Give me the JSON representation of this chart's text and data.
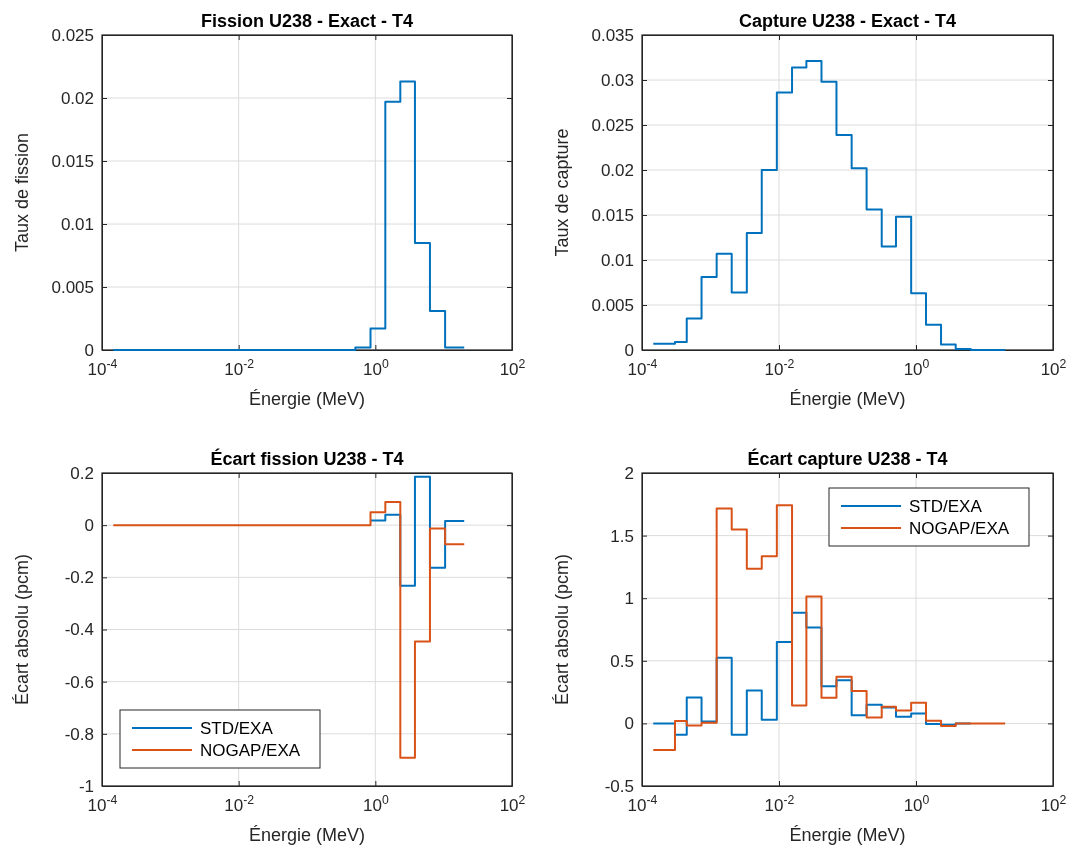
{
  "chart_data": [
    {
      "type": "step",
      "title": "Fission U238 - Exact - T4",
      "xlabel": "Énergie (MeV)",
      "ylabel": "Taux de fission",
      "log": "x",
      "grid": true,
      "x": [
        0.000146,
        0.000303,
        0.00045,
        0.00074,
        0.00123,
        0.00204,
        0.00339,
        0.0056,
        0.0093,
        0.0155,
        0.0251,
        0.0417,
        0.069,
        0.115,
        0.19,
        0.316,
        0.51,
        0.85,
        1.4,
        2.32,
        3.8,
        6.3,
        10.5,
        20
      ],
      "xlim": [
        0.0001,
        100
      ],
      "xticks": [
        {
          "value": 0.0001,
          "label": "10$^{-4}$"
        },
        {
          "value": 0.01,
          "label": "10$^{-2}$"
        },
        {
          "value": 1,
          "label": "10$^{0}$"
        },
        {
          "value": 100,
          "label": "10$^{2}$"
        }
      ],
      "ylim": [
        0,
        0.025
      ],
      "yticks": [
        0,
        0.005,
        0.01,
        0.015,
        0.02,
        0.025
      ],
      "series": [
        {
          "color": "#0072bd",
          "values": [
            0,
            0,
            0,
            0,
            0,
            0,
            0,
            0,
            0,
            0,
            0,
            0,
            0,
            0,
            0,
            0,
            0.0002,
            0.0017,
            0.0197,
            0.0213,
            0.0085,
            0.0031,
            0.0002,
            0.0002
          ]
        }
      ]
    },
    {
      "type": "step",
      "title": "Capture U238 - Exact - T4",
      "xlabel": "Énergie (MeV)",
      "ylabel": "Taux de capture",
      "log": "x",
      "grid": true,
      "x": [
        0.000146,
        0.000303,
        0.00045,
        0.00074,
        0.00123,
        0.00204,
        0.00339,
        0.0056,
        0.0093,
        0.0155,
        0.0251,
        0.0417,
        0.069,
        0.115,
        0.19,
        0.316,
        0.51,
        0.85,
        1.4,
        2.32,
        3.8,
        6.3,
        10.5,
        20
      ],
      "xlim": [
        0.0001,
        100
      ],
      "xticks": [
        {
          "value": 0.0001,
          "label": "10$^{-4}$"
        },
        {
          "value": 0.01,
          "label": "10$^{-2}$"
        },
        {
          "value": 1,
          "label": "10$^{0}$"
        },
        {
          "value": 100,
          "label": "10$^{2}$"
        }
      ],
      "ylim": [
        0,
        0.035
      ],
      "yticks": [
        0,
        0.005,
        0.01,
        0.015,
        0.02,
        0.025,
        0.03,
        0.035
      ],
      "series": [
        {
          "color": "#0072bd",
          "values": [
            0.0007,
            0.0009,
            0.0035,
            0.0081,
            0.0107,
            0.0064,
            0.013,
            0.02,
            0.0286,
            0.0314,
            0.0321,
            0.0298,
            0.0239,
            0.0202,
            0.0156,
            0.0115,
            0.0148,
            0.0063,
            0.0028,
            0.0006,
            0.0001,
            0,
            0,
            0
          ]
        }
      ]
    },
    {
      "type": "step",
      "title": "Écart fission U238 - T4",
      "xlabel": "Énergie (MeV)",
      "ylabel": "Écart absolu (pcm)",
      "log": "x",
      "grid": true,
      "legend": "bottom left",
      "x": [
        0.000146,
        0.000303,
        0.00045,
        0.00074,
        0.00123,
        0.00204,
        0.00339,
        0.0056,
        0.0093,
        0.0155,
        0.0251,
        0.0417,
        0.069,
        0.115,
        0.19,
        0.316,
        0.51,
        0.85,
        1.4,
        2.32,
        3.8,
        6.3,
        10.5,
        20
      ],
      "xlim": [
        0.0001,
        100
      ],
      "xticks": [
        {
          "value": 0.0001,
          "label": "10$^{-4}$"
        },
        {
          "value": 0.01,
          "label": "10$^{-2}$"
        },
        {
          "value": 1,
          "label": "10$^{0}$"
        },
        {
          "value": 100,
          "label": "10$^{2}$"
        }
      ],
      "ylim": [
        -1,
        0.2
      ],
      "yticks": [
        -1,
        -0.8,
        -0.6,
        -0.4,
        -0.2,
        0,
        0.2
      ],
      "series": [
        {
          "name": "STD/EXA",
          "color": "#0072bd",
          "values": [
            null,
            null,
            null,
            null,
            null,
            null,
            null,
            null,
            null,
            null,
            null,
            null,
            null,
            null,
            null,
            null,
            null,
            0.018,
            0.04,
            -0.232,
            0.186,
            -0.163,
            0.016,
            0.016
          ]
        },
        {
          "name": "NOGAP/EXA",
          "color": "#d95319",
          "values": [
            0,
            0,
            0,
            0,
            0,
            0,
            0,
            0,
            0,
            0,
            0,
            0,
            0,
            0,
            0,
            0,
            0,
            0.05,
            0.089,
            -0.892,
            -0.446,
            -0.013,
            -0.073,
            -0.073
          ]
        }
      ]
    },
    {
      "type": "step",
      "title": "Écart capture U238 - T4",
      "xlabel": "Énergie (MeV)",
      "ylabel": "Écart absolu (pcm)",
      "log": "x",
      "grid": true,
      "legend": "top right",
      "x": [
        0.000146,
        0.000303,
        0.00045,
        0.00074,
        0.00123,
        0.00204,
        0.00339,
        0.0056,
        0.0093,
        0.0155,
        0.0251,
        0.0417,
        0.069,
        0.115,
        0.19,
        0.316,
        0.51,
        0.85,
        1.4,
        2.32,
        3.8,
        6.3,
        10.5,
        20
      ],
      "xlim": [
        0.0001,
        100
      ],
      "xticks": [
        {
          "value": 0.0001,
          "label": "10$^{-4}$"
        },
        {
          "value": 0.01,
          "label": "10$^{-2}$"
        },
        {
          "value": 1,
          "label": "10$^{0}$"
        },
        {
          "value": 100,
          "label": "10$^{2}$"
        }
      ],
      "ylim": [
        -0.5,
        2
      ],
      "yticks": [
        -0.5,
        0,
        0.5,
        1,
        1.5,
        2
      ],
      "series": [
        {
          "name": "STD/EXA",
          "color": "#0072bd",
          "values": [
            0,
            -0.09,
            0.206,
            0.016,
            0.524,
            -0.09,
            0.262,
            0.029,
            0.651,
            0.884,
            0.765,
            0.296,
            0.344,
            0.066,
            0.148,
            0.127,
            0.053,
            0.079,
            -0.005,
            -0.01,
            0,
            0,
            null,
            null
          ]
        },
        {
          "name": "NOGAP/EXA",
          "color": "#d95319",
          "values": [
            -0.212,
            0.019,
            -0.016,
            0.005,
            1.717,
            1.548,
            1.235,
            1.336,
            1.743,
            0.143,
            1.013,
            0.204,
            0.373,
            0.259,
            0.048,
            0.132,
            0.103,
            0.164,
            0.021,
            -0.021,
            0,
            0,
            0,
            0
          ]
        }
      ]
    }
  ]
}
